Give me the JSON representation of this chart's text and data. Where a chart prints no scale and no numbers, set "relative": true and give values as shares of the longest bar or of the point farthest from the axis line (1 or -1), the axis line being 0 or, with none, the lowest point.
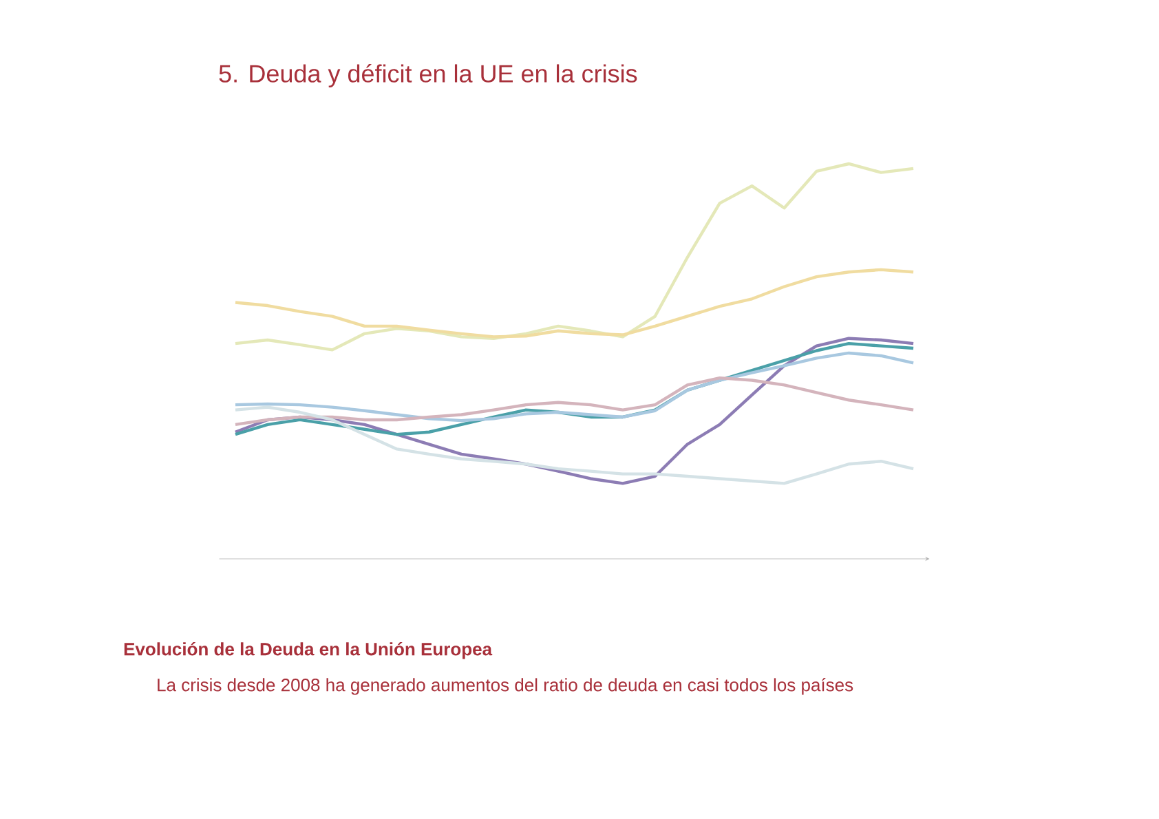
{
  "chart_data": {
    "type": "line",
    "title": "5. Deuda y déficit en la UE en la crisis",
    "relative": true,
    "categories": [
      null,
      null,
      null,
      null,
      null,
      null,
      null,
      null,
      null,
      null,
      null,
      null,
      null,
      null,
      null,
      null,
      null,
      null,
      null,
      null,
      null,
      null
    ],
    "series": [
      {
        "color": "#e4e8b8",
        "values": [
          0.545,
          0.554,
          0.542,
          0.529,
          0.57,
          0.583,
          0.577,
          0.562,
          0.558,
          0.57,
          0.589,
          0.577,
          0.562,
          0.614,
          0.763,
          0.9,
          0.944,
          0.888,
          0.981,
          1.0,
          0.978,
          0.988
        ]
      },
      {
        "color": "#f0dca0",
        "values": [
          0.649,
          0.641,
          0.626,
          0.614,
          0.589,
          0.589,
          0.579,
          0.57,
          0.562,
          0.564,
          0.577,
          0.57,
          0.567,
          0.589,
          0.614,
          0.639,
          0.658,
          0.689,
          0.714,
          0.726,
          0.732,
          0.726
        ]
      },
      {
        "color": "#8c7cb4",
        "values": [
          0.321,
          0.352,
          0.359,
          0.352,
          0.34,
          0.315,
          0.29,
          0.265,
          0.253,
          0.24,
          0.222,
          0.203,
          0.191,
          0.209,
          0.29,
          0.34,
          0.415,
          0.489,
          0.539,
          0.558,
          0.554,
          0.545
        ]
      },
      {
        "color": "#4aa0a8",
        "values": [
          0.315,
          0.34,
          0.352,
          0.34,
          0.328,
          0.315,
          0.321,
          0.34,
          0.359,
          0.377,
          0.371,
          0.359,
          0.359,
          0.377,
          0.427,
          0.452,
          0.477,
          0.502,
          0.527,
          0.545,
          0.539,
          0.533
        ]
      },
      {
        "color": "#a8c8e0",
        "values": [
          0.39,
          0.392,
          0.39,
          0.384,
          0.375,
          0.365,
          0.355,
          0.35,
          0.355,
          0.367,
          0.371,
          0.365,
          0.359,
          0.375,
          0.427,
          0.452,
          0.471,
          0.489,
          0.508,
          0.521,
          0.514,
          0.496
        ]
      },
      {
        "color": "#d4b4bc",
        "values": [
          0.34,
          0.352,
          0.359,
          0.359,
          0.352,
          0.352,
          0.359,
          0.365,
          0.377,
          0.39,
          0.396,
          0.39,
          0.377,
          0.39,
          0.44,
          0.458,
          0.452,
          0.44,
          0.421,
          0.402,
          0.39,
          0.377
        ]
      },
      {
        "color": "#d4e2e6",
        "values": [
          0.377,
          0.384,
          0.371,
          0.352,
          0.315,
          0.278,
          0.265,
          0.253,
          0.247,
          0.24,
          0.228,
          0.222,
          0.215,
          0.215,
          0.209,
          0.203,
          0.197,
          0.191,
          0.215,
          0.24,
          0.247,
          0.228
        ]
      }
    ],
    "line_style": "solid",
    "marker": "none",
    "annotations": [
      "Evolución de la Deuda en la Unión Europea",
      "La crisis desde 2008 ha generado aumentos del ratio de deuda en casi todos los países"
    ]
  }
}
